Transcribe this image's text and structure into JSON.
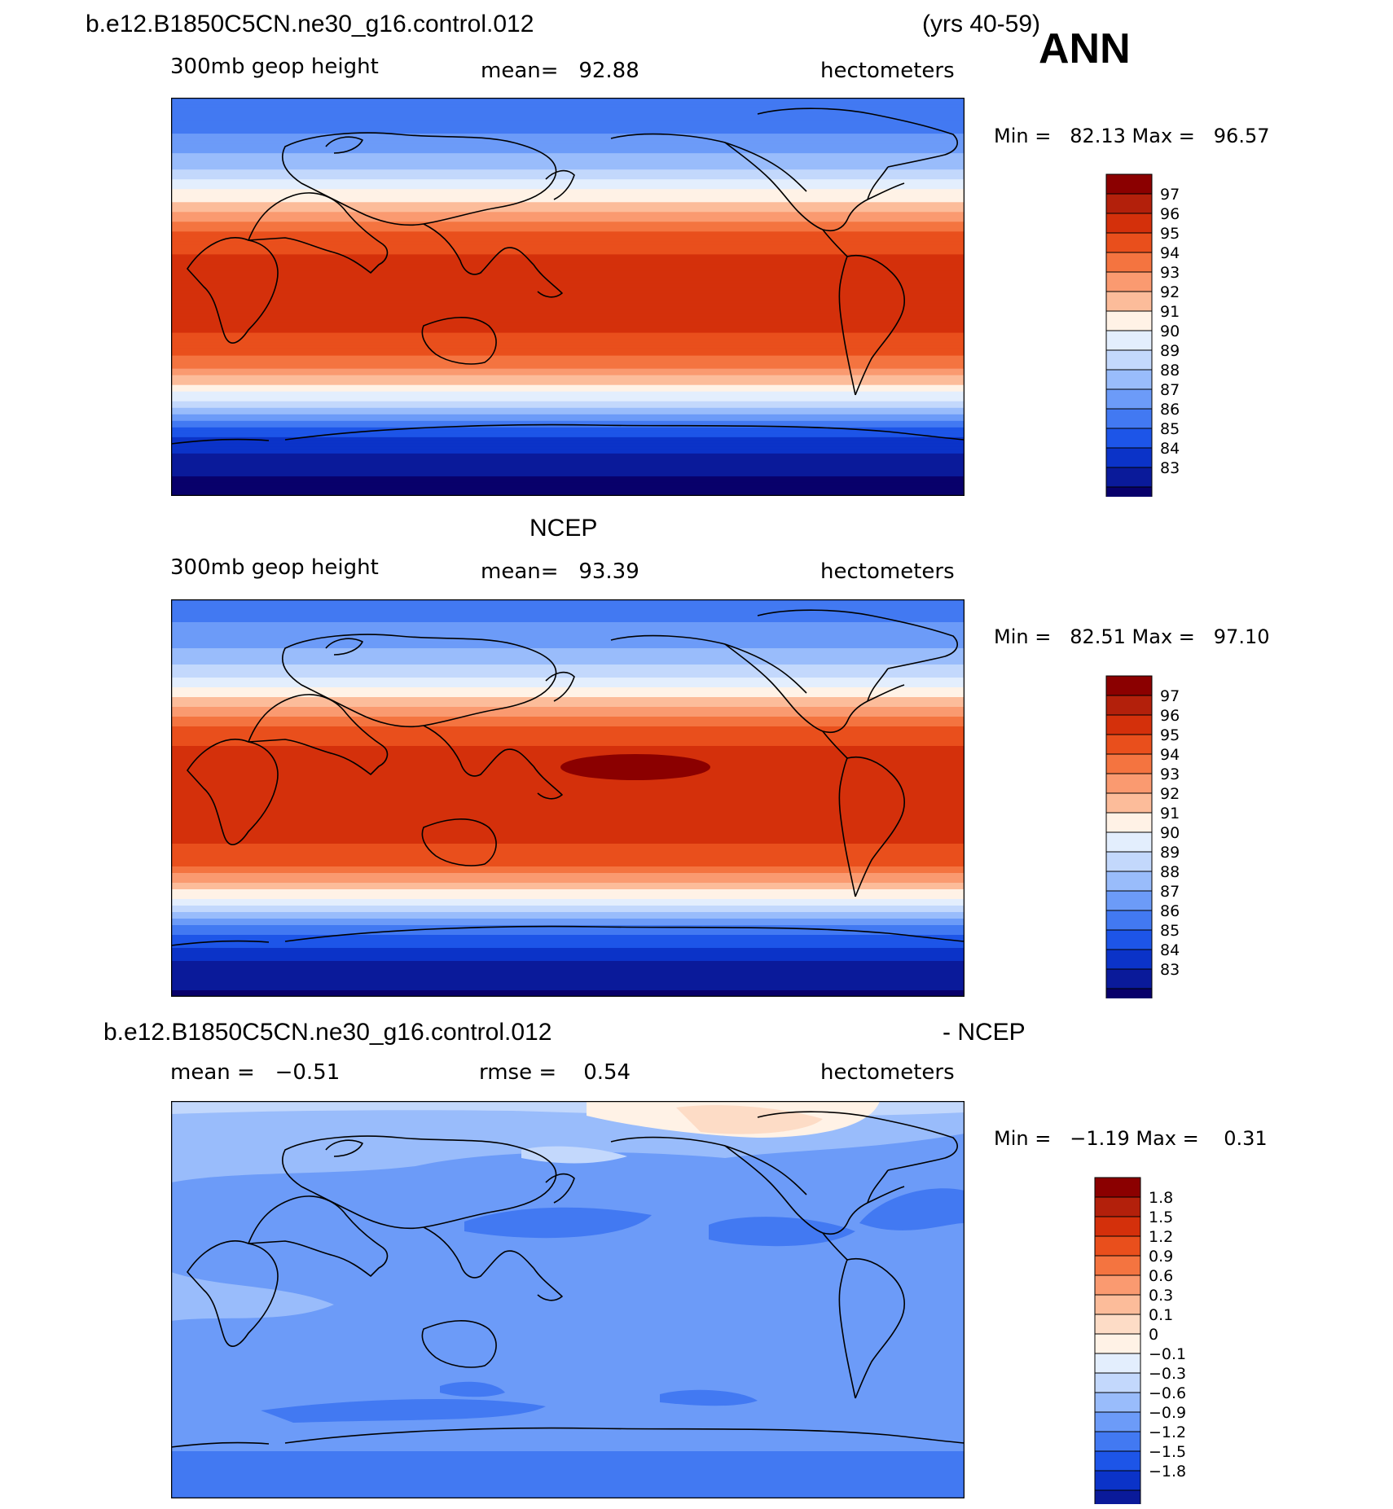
{
  "header": {
    "case": "b.e12.B1850C5CN.ne30_g16.control.012",
    "years": "(yrs 40-59)",
    "season": "ANN"
  },
  "colors": {
    "diverging": [
      "#08006b",
      "#0a1a9a",
      "#0b33c8",
      "#1d55e8",
      "#4279f2",
      "#6c9bf8",
      "#99bcfb",
      "#c3d8fc",
      "#e3eefd",
      "#fff2e6",
      "#fddcc6",
      "#fcbc9a",
      "#fa9a70",
      "#f47440",
      "#e94f1c",
      "#d4300b",
      "#b3200b",
      "#8b0000"
    ],
    "absolute": [
      "#08006b",
      "#0a1a9a",
      "#0b33c8",
      "#1d55e8",
      "#4279f2",
      "#6c9bf8",
      "#99bcfb",
      "#c3d8fc",
      "#e3eefd",
      "#fff2e6",
      "#fcbc9a",
      "#fa9a70",
      "#f47440",
      "#e94f1c",
      "#d4300b",
      "#b3200b",
      "#8b0000"
    ],
    "land_outline": "#000000"
  },
  "chart_data": [
    {
      "type": "heatmap",
      "title": "b.e12.B1850C5CN.ne30_g16.control.012",
      "left_label": "300mb geop height",
      "center_label": "mean=   92.88",
      "right_label": "hectometers",
      "minmax": "Min =   82.13 Max =   96.57",
      "min": 82.13,
      "max": 96.57,
      "mean": 92.88,
      "units": "hectometers",
      "lon_range": [
        0,
        360
      ],
      "lat_range": [
        -90,
        90
      ],
      "levels": [
        "97",
        "96",
        "95",
        "94",
        "93",
        "92",
        "91",
        "90",
        "89",
        "88",
        "87",
        "86",
        "85",
        "84",
        "83"
      ],
      "zonal_profile": {
        "lat": [
          90,
          75,
          60,
          45,
          30,
          15,
          0,
          -15,
          -30,
          -45,
          -60,
          -75,
          -90
        ],
        "value": [
          86.2,
          86.8,
          88.6,
          91.6,
          95.0,
          96.3,
          96.4,
          96.2,
          94.6,
          90.6,
          85.6,
          83.4,
          82.4
        ]
      }
    },
    {
      "type": "heatmap",
      "title": "NCEP",
      "left_label": "300mb geop height",
      "center_label": "mean=   93.39",
      "right_label": "hectometers",
      "minmax": "Min =   82.51 Max =   97.10",
      "min": 82.51,
      "max": 97.1,
      "mean": 93.39,
      "units": "hectometers",
      "lon_range": [
        0,
        360
      ],
      "lat_range": [
        -90,
        90
      ],
      "levels": [
        "97",
        "96",
        "95",
        "94",
        "93",
        "92",
        "91",
        "90",
        "89",
        "88",
        "87",
        "86",
        "85",
        "84",
        "83"
      ],
      "zonal_profile": {
        "lat": [
          90,
          75,
          60,
          45,
          30,
          15,
          0,
          -15,
          -30,
          -45,
          -60,
          -75,
          -90
        ],
        "value": [
          86.6,
          87.2,
          89.0,
          92.1,
          95.4,
          96.7,
          96.8,
          96.6,
          95.1,
          91.1,
          86.2,
          83.8,
          82.8
        ]
      }
    },
    {
      "type": "heatmap",
      "title_left": "b.e12.B1850C5CN.ne30_g16.control.012",
      "title_right": "- NCEP",
      "left_label": "mean =   −0.51",
      "center_label": "rmse =    0.54",
      "right_label": "hectometers",
      "minmax": "Min =   −1.19 Max =    0.31",
      "min": -1.19,
      "max": 0.31,
      "mean": -0.51,
      "rmse": 0.54,
      "units": "hectometers",
      "lon_range": [
        0,
        360
      ],
      "lat_range": [
        -90,
        90
      ],
      "levels": [
        "1.8",
        "1.5",
        "1.2",
        "0.9",
        "0.6",
        "0.3",
        "0.1",
        "0",
        "−0.1",
        "−0.3",
        "−0.6",
        "−0.9",
        "−1.2",
        "−1.5",
        "−1.8"
      ]
    }
  ]
}
